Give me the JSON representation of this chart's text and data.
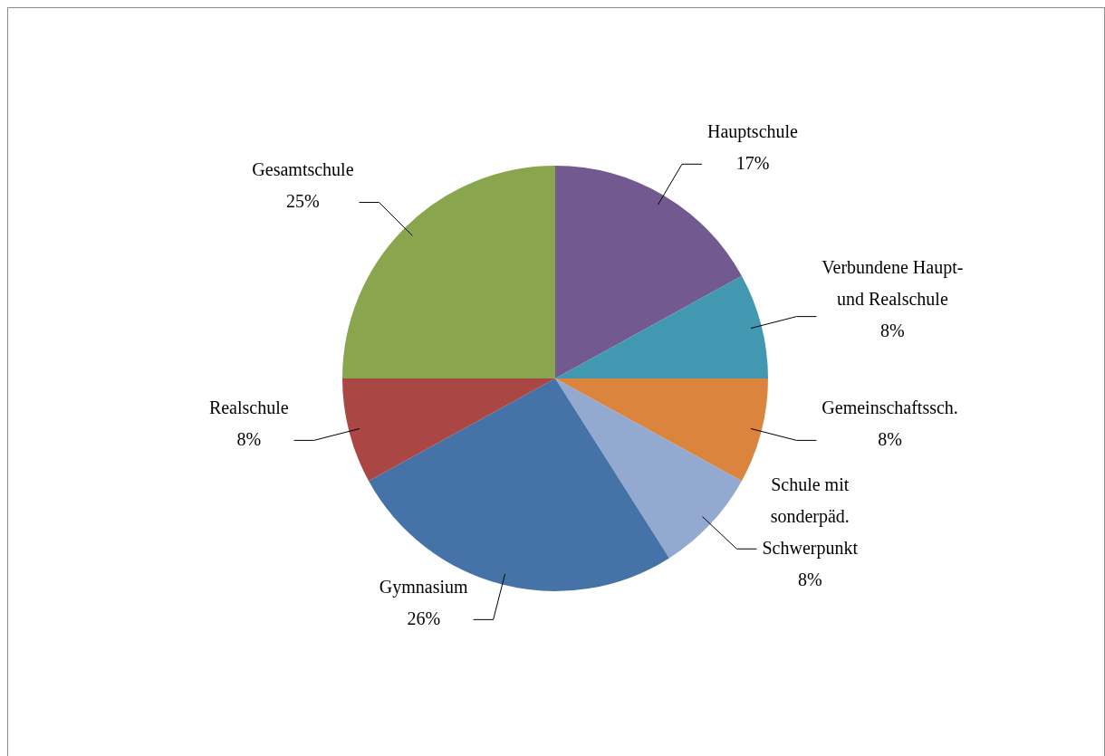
{
  "chart_data": {
    "type": "pie",
    "categories": [
      "Hauptschule",
      "Verbundene Haupt- und Realschule",
      "Gemeinschaftssch.",
      "Schule mit sonderpäd. Schwerpunkt",
      "Gymnasium",
      "Realschule",
      "Gesamtschule"
    ],
    "values": [
      17,
      8,
      8,
      8,
      26,
      8,
      25
    ],
    "colors": [
      "#72598f",
      "#4298b0",
      "#db843d",
      "#93a9cf",
      "#4572a7",
      "#aa4643",
      "#89a54e"
    ],
    "value_labels": [
      "17%",
      "8%",
      "8%",
      "8%",
      "26%",
      "8%",
      "25%"
    ]
  }
}
